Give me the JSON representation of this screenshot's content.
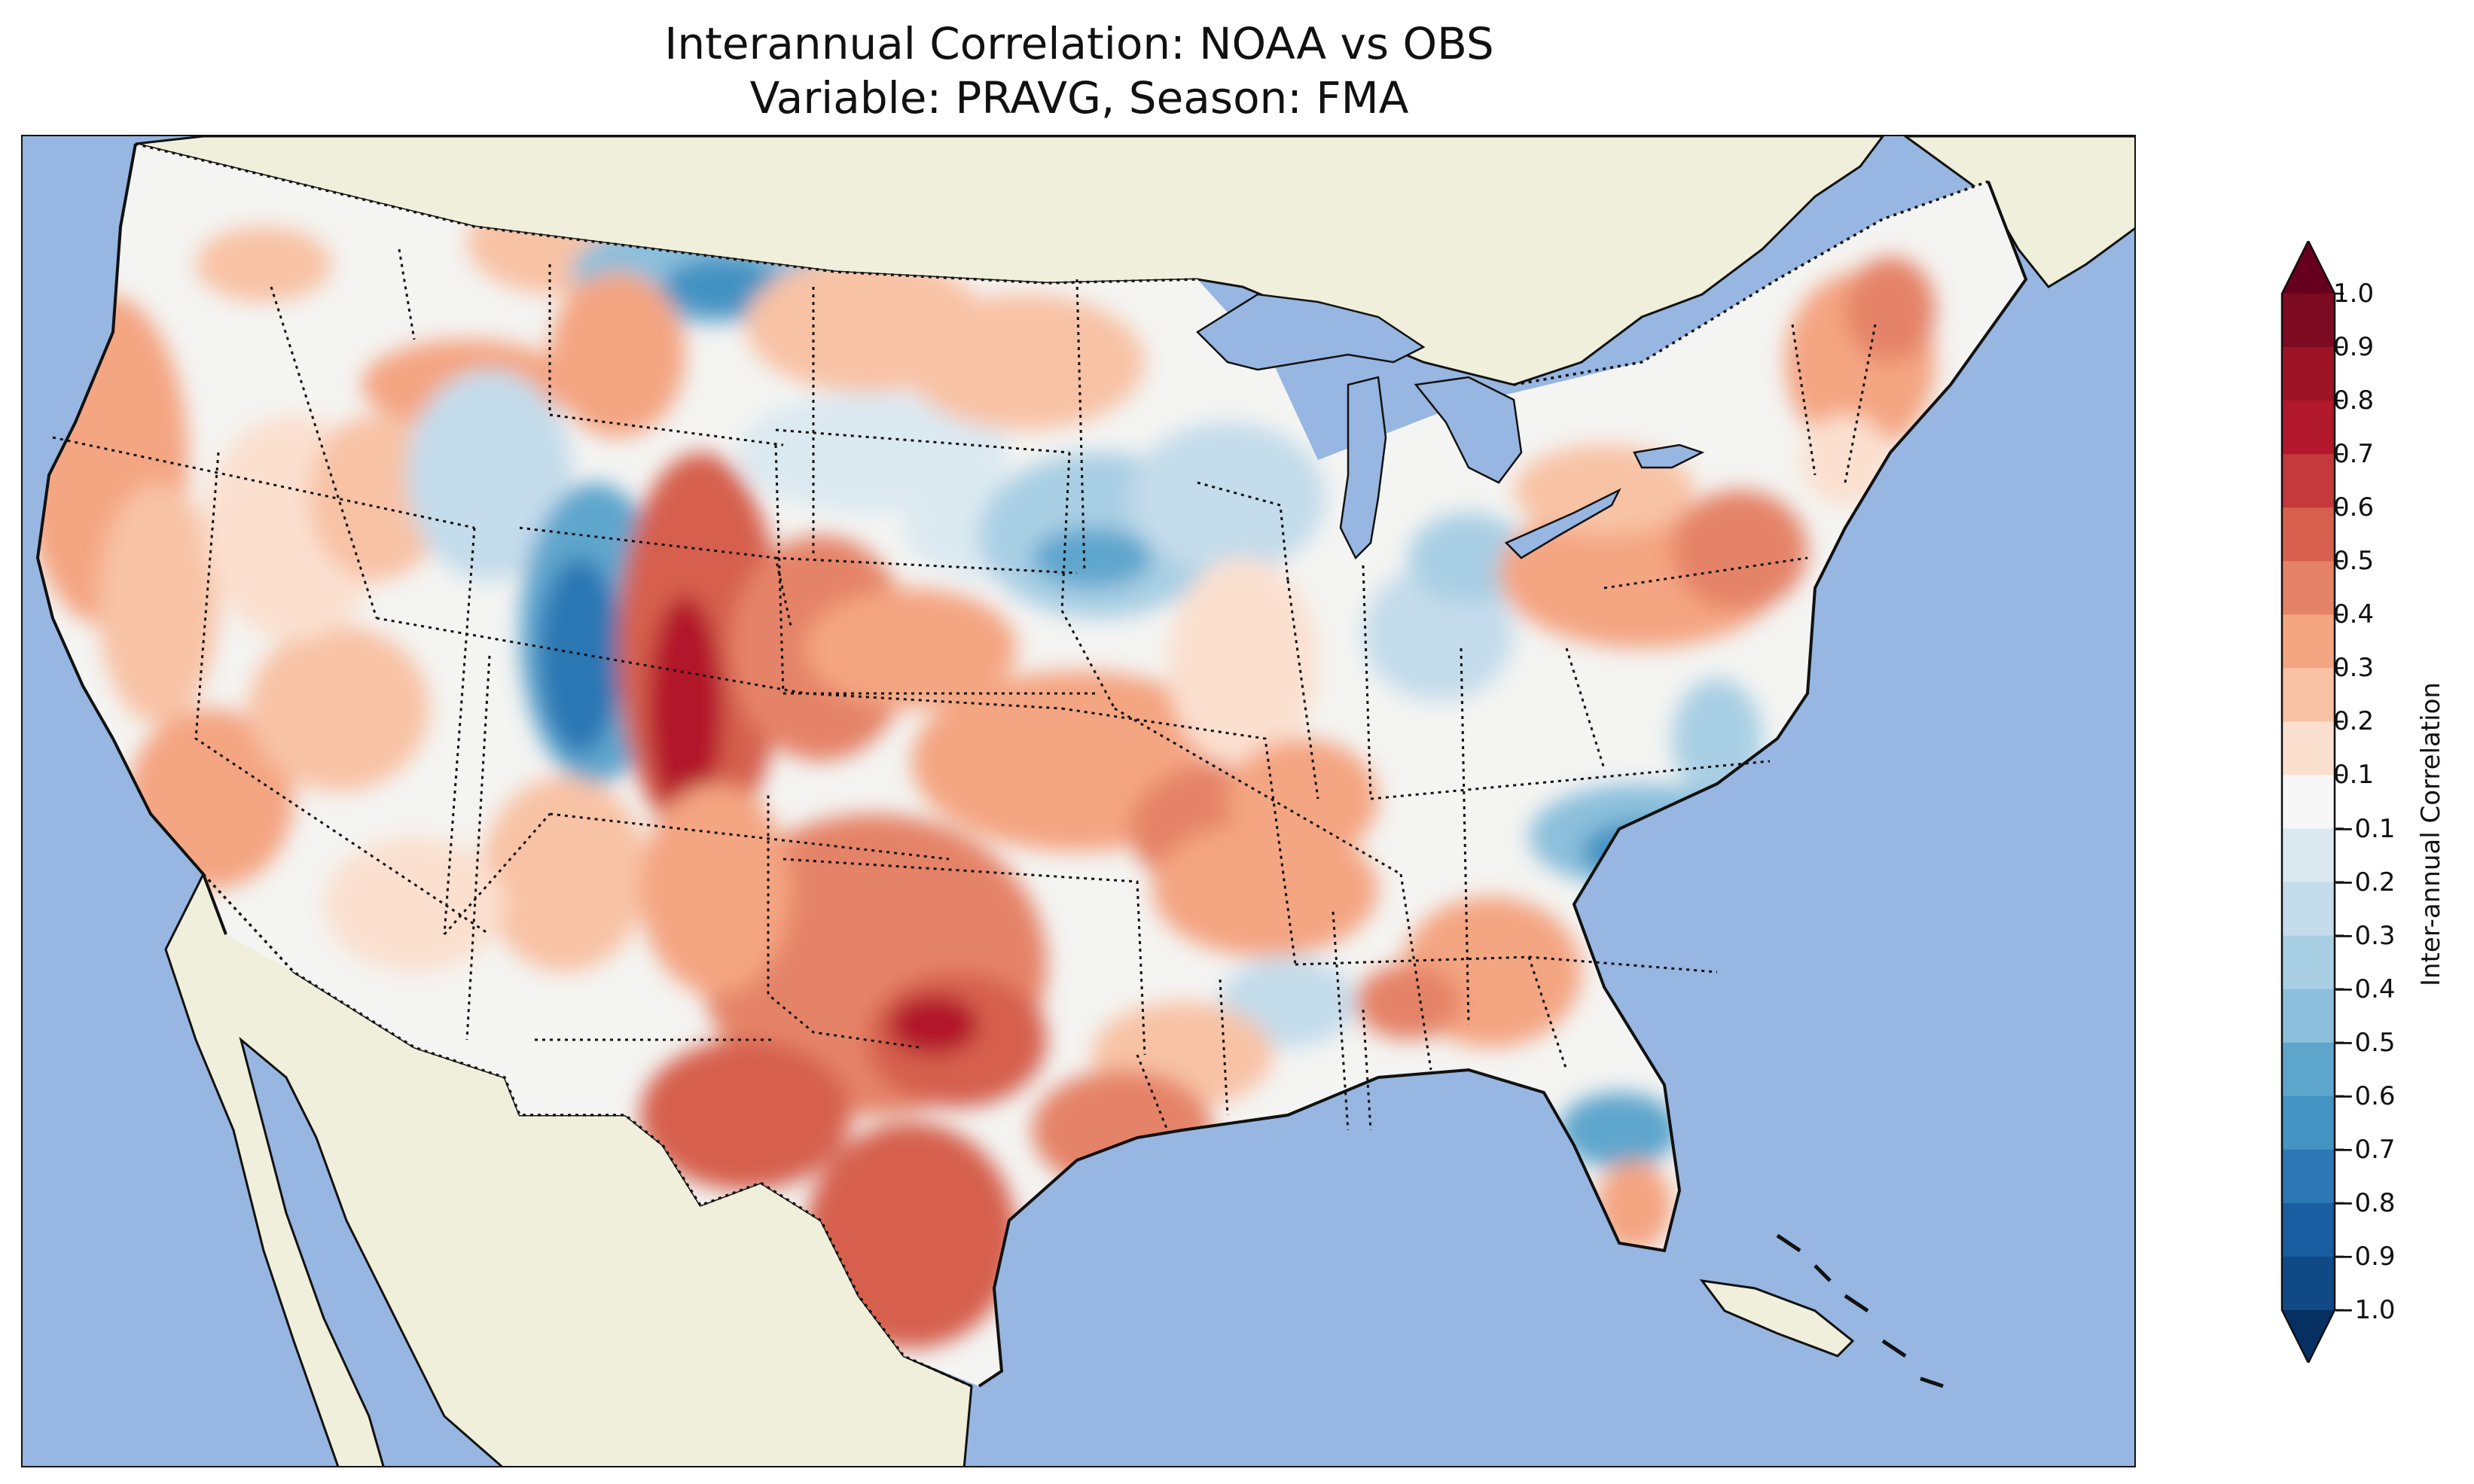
{
  "title": {
    "line1": "Interannual Correlation: NOAA vs OBS",
    "line2": "Variable: PRAVG, Season: FMA"
  },
  "colorbar": {
    "label": "Inter-annual Correlation",
    "ticks": [
      "1.0",
      "0.9",
      "0.8",
      "0.7",
      "0.6",
      "0.5",
      "0.4",
      "0.3",
      "0.2",
      "0.1",
      "−0.1",
      "−0.2",
      "−0.3",
      "−0.4",
      "−0.5",
      "−0.6",
      "−0.7",
      "−0.8",
      "−0.9",
      "−1.0"
    ],
    "extend": "both",
    "range": [
      -1.0,
      1.0
    ],
    "colors_top_to_bottom": [
      "#67001f",
      "#7d0c22",
      "#9e1427",
      "#b2182b",
      "#c4393c",
      "#d6604d",
      "#e58368",
      "#f4a582",
      "#f8c2a5",
      "#fbe0d0",
      "#f7f7f7",
      "#dbe9f1",
      "#c4dceb",
      "#a9cfe4",
      "#8bbfdb",
      "#5fa6cd",
      "#4393c3",
      "#2c77b4",
      "#185ea0",
      "#0f4a87",
      "#053061"
    ]
  },
  "map": {
    "projection": "Lambert conformal",
    "region": "Contiguous United States",
    "ocean_color": "#97b6e1",
    "land_color": "#efefdb",
    "notable_regions": [
      {
        "name": "Texas / Southern Plains",
        "correlation": 0.6
      },
      {
        "name": "Colorado Front Range",
        "correlation": 0.7
      },
      {
        "name": "California coast",
        "correlation": 0.4
      },
      {
        "name": "Central Utah",
        "correlation": -0.7
      },
      {
        "name": "Northern Montana",
        "correlation": -0.6
      },
      {
        "name": "Iowa / Minnesota",
        "correlation": -0.5
      },
      {
        "name": "Western North Carolina",
        "correlation": -0.6
      },
      {
        "name": "Northern Florida",
        "correlation": -0.6
      },
      {
        "name": "Pennsylvania / New York",
        "correlation": 0.5
      },
      {
        "name": "Maine",
        "correlation": 0.4
      },
      {
        "name": "Arkansas / Mississippi",
        "correlation": 0.5
      }
    ]
  }
}
